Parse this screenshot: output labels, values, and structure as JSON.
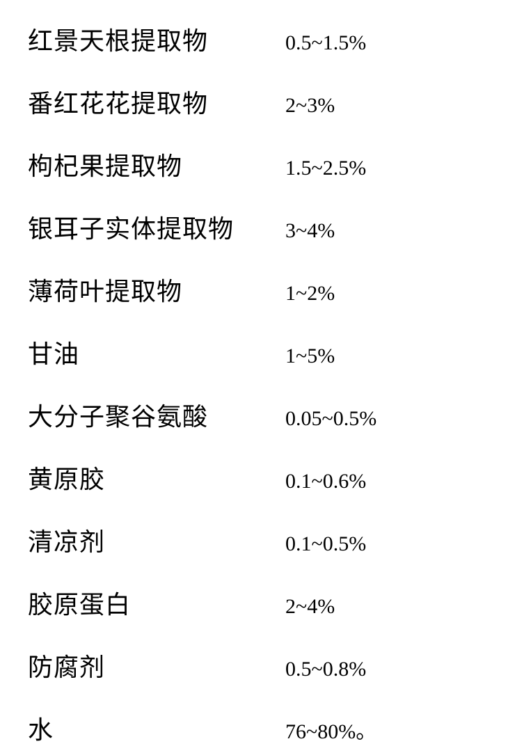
{
  "ingredients": [
    {
      "name": "红景天根提取物",
      "value": "0.5~1.5%"
    },
    {
      "name": "番红花花提取物",
      "value": "2~3%"
    },
    {
      "name": "枸杞果提取物",
      "value": "1.5~2.5%"
    },
    {
      "name": "银耳子实体提取物",
      "value": "3~4%"
    },
    {
      "name": "薄荷叶提取物",
      "value": "1~2%"
    },
    {
      "name": "甘油",
      "value": "1~5%"
    },
    {
      "name": "大分子聚谷氨酸",
      "value": "0.05~0.5%"
    },
    {
      "name": "黄原胶",
      "value": "0.1~0.6%"
    },
    {
      "name": "清凉剂",
      "value": "0.1~0.5%"
    },
    {
      "name": "胶原蛋白",
      "value": "2~4%"
    },
    {
      "name": "防腐剂",
      "value": "0.5~0.8%"
    },
    {
      "name": "水",
      "value": "76~80%。"
    }
  ],
  "styling": {
    "background_color": "#ffffff",
    "text_color": "#000000",
    "name_fontsize": 36,
    "value_fontsize": 30,
    "name_column_width": 370,
    "row_gap": 38,
    "name_font_family": "SimSun, KaiTi, serif",
    "value_font_family": "Times New Roman, serif"
  }
}
